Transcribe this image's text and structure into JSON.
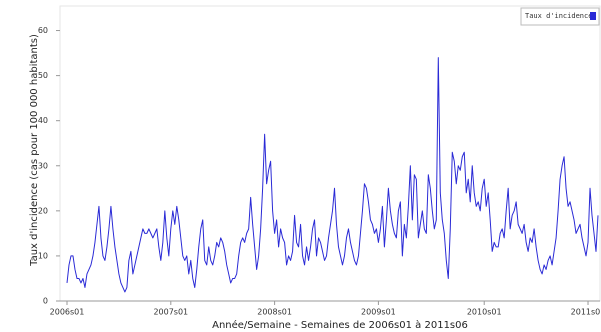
{
  "chart_data": {
    "type": "line",
    "y_label": "Taux d'incidence (cas pour 100 000 habitants)",
    "x_label": "Année/Semaine - Semaines de 2006s01 à 2011s06",
    "categories": [
      "2006s01",
      null,
      null,
      null,
      null,
      null,
      null,
      null,
      null,
      null,
      null,
      null,
      null,
      null,
      null,
      null,
      null,
      null,
      null,
      null,
      null,
      null,
      null,
      null,
      null,
      null,
      null,
      null,
      null,
      null,
      null,
      null,
      null,
      null,
      null,
      null,
      null,
      null,
      null,
      null,
      null,
      null,
      null,
      null,
      null,
      null,
      null,
      null,
      null,
      null,
      null,
      null,
      "2007s01",
      null,
      null,
      null,
      null,
      null,
      null,
      null,
      null,
      null,
      null,
      null,
      null,
      null,
      null,
      null,
      null,
      null,
      null,
      null,
      null,
      null,
      null,
      null,
      null,
      null,
      null,
      null,
      null,
      null,
      null,
      null,
      null,
      null,
      null,
      null,
      null,
      null,
      null,
      null,
      null,
      null,
      null,
      null,
      null,
      null,
      null,
      null,
      null,
      null,
      null,
      null,
      "2008s01",
      null,
      null,
      null,
      null,
      null,
      null,
      null,
      null,
      null,
      null,
      null,
      null,
      null,
      null,
      null,
      null,
      null,
      null,
      null,
      null,
      null,
      null,
      null,
      null,
      null,
      null,
      null,
      null,
      null,
      null,
      null,
      null,
      null,
      null,
      null,
      null,
      null,
      null,
      null,
      null,
      null,
      null,
      null,
      null,
      null,
      null,
      null,
      null,
      null,
      null,
      null,
      "2009s01",
      null,
      null,
      null,
      null,
      null,
      null,
      null,
      null,
      null,
      null,
      null,
      null,
      null,
      null,
      null,
      null,
      null,
      null,
      null,
      null,
      null,
      null,
      null,
      null,
      null,
      null,
      null,
      null,
      null,
      null,
      null,
      null,
      null,
      null,
      null,
      null,
      null,
      null,
      null,
      null,
      null,
      null,
      null,
      null,
      null,
      null,
      null,
      null,
      null,
      null,
      null,
      null,
      "2010s01",
      null,
      null,
      null,
      null,
      null,
      null,
      null,
      null,
      null,
      null,
      null,
      null,
      null,
      null,
      null,
      null,
      null,
      null,
      null,
      null,
      null,
      null,
      null,
      null,
      null,
      null,
      null,
      null,
      null,
      null,
      null,
      null,
      null,
      null,
      null,
      null,
      null,
      null,
      null,
      null,
      null,
      null,
      null,
      null,
      null,
      null,
      null,
      null,
      null,
      null,
      null,
      "2011s01",
      null,
      null,
      null,
      null,
      null
    ],
    "series": [
      {
        "name": "Taux d'incidence",
        "color": "#2a2ad6",
        "values": [
          4,
          8,
          10,
          10,
          7,
          5,
          5,
          4,
          5,
          3,
          6,
          7,
          8,
          10,
          13,
          17,
          21,
          14,
          10,
          9,
          12,
          16,
          21,
          16,
          12,
          9,
          6,
          4,
          3,
          2,
          3,
          9,
          11,
          6,
          8,
          10,
          12,
          14,
          16,
          15,
          15,
          16,
          15,
          14,
          15,
          16,
          12,
          9,
          13,
          20,
          14,
          10,
          16,
          20,
          17,
          21,
          18,
          14,
          10,
          9,
          10,
          6,
          9,
          5,
          3,
          7,
          12,
          16,
          18,
          9,
          8,
          12,
          9,
          8,
          10,
          13,
          12,
          14,
          13,
          11,
          8,
          6,
          4,
          5,
          5,
          6,
          10,
          13,
          14,
          13,
          15,
          16,
          23,
          17,
          12,
          7,
          10,
          16,
          25,
          37,
          26,
          29,
          31,
          20,
          15,
          18,
          12,
          16,
          14,
          13,
          8,
          10,
          9,
          11,
          19,
          13,
          12,
          17,
          10,
          8,
          12,
          9,
          12,
          16,
          18,
          10,
          14,
          13,
          11,
          9,
          10,
          14,
          17,
          20,
          25,
          17,
          12,
          10,
          8,
          10,
          14,
          16,
          13,
          11,
          9,
          8,
          10,
          15,
          20,
          26,
          25,
          22,
          18,
          17,
          15,
          16,
          13,
          16,
          21,
          12,
          18,
          25,
          20,
          17,
          15,
          14,
          20,
          22,
          10,
          17,
          14,
          21,
          30,
          18,
          28,
          27,
          14,
          17,
          20,
          16,
          15,
          28,
          25,
          20,
          16,
          18,
          54,
          24,
          18,
          15,
          9,
          5,
          16,
          33,
          31,
          26,
          30,
          29,
          32,
          33,
          24,
          27,
          22,
          30,
          24,
          21,
          22,
          20,
          25,
          27,
          21,
          24,
          18,
          11,
          13,
          12,
          12,
          15,
          16,
          14,
          20,
          25,
          16,
          19,
          20,
          22,
          17,
          16,
          15,
          17,
          13,
          11,
          14,
          13,
          16,
          12,
          9,
          7,
          6,
          8,
          7,
          9,
          10,
          8,
          11,
          14,
          20,
          27,
          30,
          32,
          25,
          21,
          22,
          20,
          18,
          15,
          16,
          17,
          14,
          12,
          10,
          13,
          25,
          19,
          15,
          11,
          19
        ]
      }
    ],
    "ylim": [
      0,
      65
    ],
    "yticks": [
      0,
      10,
      20,
      30,
      40,
      50,
      60
    ],
    "legend": "top-right",
    "grid": false
  }
}
